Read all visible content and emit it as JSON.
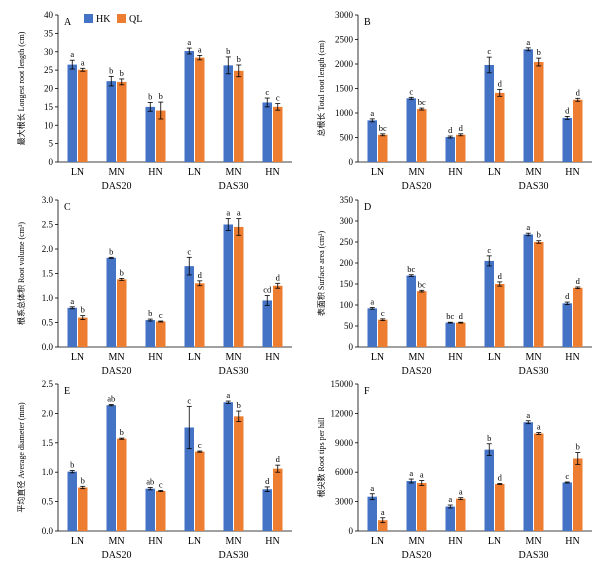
{
  "legend": [
    {
      "name": "HK",
      "color": "#4472C4"
    },
    {
      "name": "QL",
      "color": "#ED7D31"
    }
  ],
  "chart_data": [
    {
      "type": "bar",
      "panel": "A",
      "ylabel": "最大根长 Longest root length (cm)",
      "ylim": [
        0,
        40
      ],
      "yticks": [
        0,
        5,
        10,
        15,
        20,
        25,
        30,
        35,
        40
      ],
      "categories": [
        "LN",
        "MN",
        "HN",
        "LN",
        "MN",
        "HN"
      ],
      "groups": [
        {
          "label": "DAS20",
          "span": [
            0,
            2
          ]
        },
        {
          "label": "DAS30",
          "span": [
            3,
            5
          ]
        }
      ],
      "series": [
        {
          "name": "HK",
          "values": [
            26.5,
            22,
            15,
            30.2,
            26.3,
            16.2
          ],
          "errors": [
            1.2,
            1.3,
            1.2,
            0.8,
            2.3,
            1.2
          ],
          "letters": [
            "a",
            "b",
            "b",
            "a",
            "b",
            "c"
          ]
        },
        {
          "name": "QL",
          "values": [
            25.1,
            21.8,
            14,
            28.4,
            24.8,
            15
          ],
          "errors": [
            0.4,
            0.8,
            2.3,
            0.6,
            1.6,
            0.9
          ],
          "letters": [
            "a",
            "b",
            "b",
            "a",
            "b",
            "c"
          ]
        }
      ]
    },
    {
      "type": "bar",
      "panel": "B",
      "ylabel": "总根长 Total root length (cm)",
      "ylim": [
        0,
        3000
      ],
      "yticks": [
        0,
        500,
        1000,
        1500,
        2000,
        2500,
        3000
      ],
      "categories": [
        "LN",
        "MN",
        "HN",
        "LN",
        "MN",
        "HN"
      ],
      "groups": [
        {
          "label": "DAS20",
          "span": [
            0,
            2
          ]
        },
        {
          "label": "DAS30",
          "span": [
            3,
            5
          ]
        }
      ],
      "series": [
        {
          "name": "HK",
          "values": [
            850,
            1300,
            510,
            1980,
            2300,
            900
          ],
          "errors": [
            30,
            20,
            20,
            160,
            30,
            30
          ],
          "letters": [
            "a",
            "c",
            "d",
            "c",
            "a",
            "d"
          ]
        },
        {
          "name": "QL",
          "values": [
            555,
            1080,
            555,
            1410,
            2040,
            1270
          ],
          "errors": [
            20,
            20,
            20,
            70,
            80,
            30
          ],
          "letters": [
            "bc",
            "bc",
            "d",
            "d",
            "b",
            "d"
          ]
        }
      ]
    },
    {
      "type": "bar",
      "panel": "C",
      "ylabel": "根系总体积 Root volume (cm³)",
      "ylim": [
        0,
        3.0
      ],
      "yticks": [
        0,
        0.5,
        1.0,
        1.5,
        2.0,
        2.5,
        3.0
      ],
      "categories": [
        "LN",
        "MN",
        "HN",
        "LN",
        "MN",
        "HN"
      ],
      "groups": [
        {
          "label": "DAS20",
          "span": [
            0,
            2
          ]
        },
        {
          "label": "DAS30",
          "span": [
            3,
            5
          ]
        }
      ],
      "series": [
        {
          "name": "HK",
          "values": [
            0.8,
            1.82,
            0.55,
            1.65,
            2.5,
            0.95
          ],
          "errors": [
            0.02,
            0.01,
            0.02,
            0.18,
            0.12,
            0.1
          ],
          "letters": [
            "a",
            "b",
            "b",
            "c",
            "a",
            "cd"
          ]
        },
        {
          "name": "QL",
          "values": [
            0.6,
            1.38,
            0.52,
            1.3,
            2.45,
            1.25
          ],
          "errors": [
            0.04,
            0.02,
            0.01,
            0.05,
            0.17,
            0.05
          ],
          "letters": [
            "b",
            "b",
            "c",
            "d",
            "a",
            "d"
          ]
        }
      ]
    },
    {
      "type": "bar",
      "panel": "D",
      "ylabel": "表面积 Surface area (cm²)",
      "ylim": [
        0,
        350
      ],
      "yticks": [
        0,
        50,
        100,
        150,
        200,
        250,
        300,
        350
      ],
      "categories": [
        "LN",
        "MN",
        "HN",
        "LN",
        "MN",
        "HN"
      ],
      "groups": [
        {
          "label": "DAS20",
          "span": [
            0,
            2
          ]
        },
        {
          "label": "DAS30",
          "span": [
            3,
            5
          ]
        }
      ],
      "series": [
        {
          "name": "HK",
          "values": [
            92,
            170,
            58,
            205,
            268,
            104
          ],
          "errors": [
            2,
            2,
            1,
            12,
            3,
            3
          ],
          "letters": [
            "a",
            "bc",
            "bc",
            "c",
            "a",
            "d"
          ]
        },
        {
          "name": "QL",
          "values": [
            65,
            133,
            58,
            150,
            250,
            141
          ],
          "errors": [
            2,
            2,
            1,
            5,
            3,
            2
          ],
          "letters": [
            "c",
            "bc",
            "d",
            "d",
            "b",
            "d"
          ]
        }
      ]
    },
    {
      "type": "bar",
      "panel": "E",
      "ylabel": "平均直径 Average diameter (mm)",
      "ylim": [
        0,
        2.5
      ],
      "yticks": [
        0,
        0.5,
        1.0,
        1.5,
        2.0,
        2.5
      ],
      "categories": [
        "LN",
        "MN",
        "HN",
        "LN",
        "MN",
        "HN"
      ],
      "groups": [
        {
          "label": "DAS20",
          "span": [
            0,
            2
          ]
        },
        {
          "label": "DAS30",
          "span": [
            3,
            5
          ]
        }
      ],
      "series": [
        {
          "name": "HK",
          "values": [
            1.01,
            2.14,
            0.72,
            1.76,
            2.19,
            0.71
          ],
          "errors": [
            0.02,
            0.01,
            0.02,
            0.36,
            0.02,
            0.04
          ],
          "letters": [
            "b",
            "ab",
            "ab",
            "c",
            "a",
            "d"
          ]
        },
        {
          "name": "QL",
          "values": [
            0.74,
            1.57,
            0.68,
            1.35,
            1.95,
            1.06
          ],
          "errors": [
            0.02,
            0.01,
            0.01,
            0.01,
            0.09,
            0.06
          ],
          "letters": [
            "b",
            "b",
            "c",
            "c",
            "b",
            "d"
          ]
        }
      ]
    },
    {
      "type": "bar",
      "panel": "F",
      "ylabel": "根尖数 Root tips per hill",
      "ylim": [
        0,
        15000
      ],
      "yticks": [
        0,
        3000,
        6000,
        9000,
        12000,
        15000
      ],
      "categories": [
        "LN",
        "MN",
        "HN",
        "LN",
        "MN",
        "HN"
      ],
      "groups": [
        {
          "label": "DAS20",
          "span": [
            0,
            2
          ]
        },
        {
          "label": "DAS30",
          "span": [
            3,
            5
          ]
        }
      ],
      "series": [
        {
          "name": "HK",
          "values": [
            3500,
            5100,
            2500,
            8300,
            11100,
            4950
          ],
          "errors": [
            300,
            200,
            150,
            600,
            150,
            50
          ],
          "letters": [
            "a",
            "a",
            "a",
            "b",
            "a",
            "c"
          ]
        },
        {
          "name": "QL",
          "values": [
            1100,
            4900,
            3300,
            4800,
            9950,
            7400
          ],
          "errors": [
            250,
            250,
            100,
            50,
            100,
            600
          ],
          "letters": [
            "a",
            "a",
            "a",
            "d",
            "a",
            "b"
          ]
        }
      ]
    }
  ]
}
